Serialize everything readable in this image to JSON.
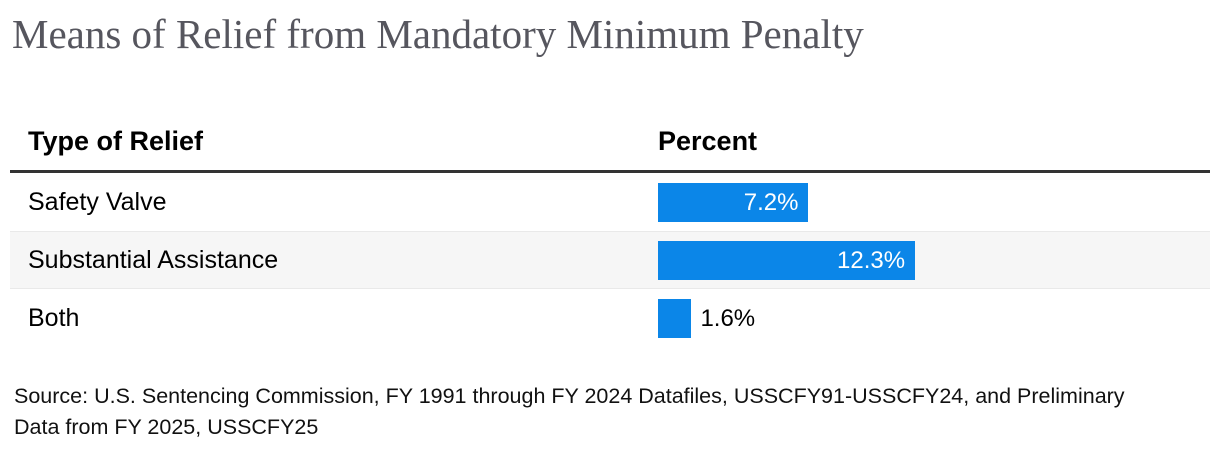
{
  "title": "Means of Relief from Mandatory Minimum Penalty",
  "chart_data": {
    "type": "bar",
    "orientation": "horizontal",
    "title": "Means of Relief from Mandatory Minimum Penalty",
    "columns": [
      "Type of Relief",
      "Percent"
    ],
    "categories": [
      "Safety Valve",
      "Substantial Assistance",
      "Both"
    ],
    "values": [
      7.2,
      12.3,
      1.6
    ],
    "value_labels": [
      "7.2%",
      "12.3%",
      "1.6%"
    ],
    "unit": "%",
    "bar_color": "#0b86e8",
    "grid": false,
    "legend": false
  },
  "source": {
    "lines": [
      "Source: U.S. Sentencing Commission, FY 1991 through FY 2024 Datafiles, USSCFY91-USSCFY24, and Preliminary",
      "Data from FY 2025, USSCFY25"
    ]
  }
}
